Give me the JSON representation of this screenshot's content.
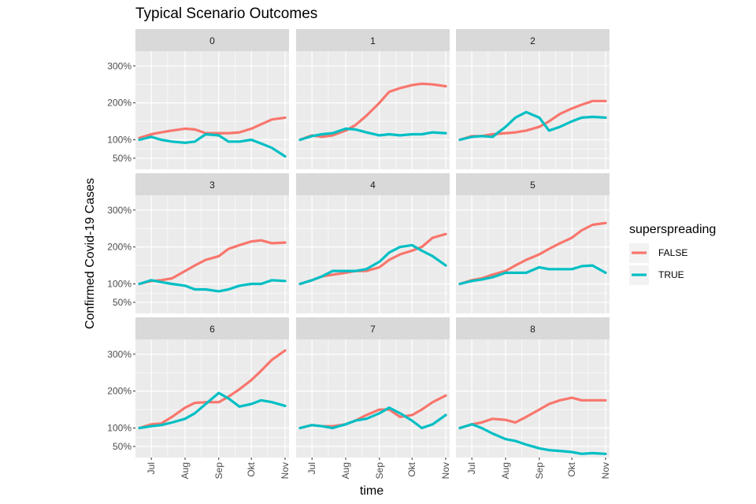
{
  "chart_data": {
    "type": "line",
    "title": "Typical Scenario Outcomes",
    "xlabel": "time",
    "ylabel": "Confirmed Covid-19 Cases",
    "x_ticks": [
      {
        "date": "2020-07-01",
        "label": "Jul"
      },
      {
        "date": "2020-08-01",
        "label": "Aug"
      },
      {
        "date": "2020-09-01",
        "label": "Sep"
      },
      {
        "date": "2020-10-01",
        "label": "Okt"
      },
      {
        "date": "2020-11-01",
        "label": "Nov"
      }
    ],
    "xlim": [
      "2020-06-20",
      "2020-11-01"
    ],
    "y_ticks": [
      {
        "value": 50,
        "label": "50%"
      },
      {
        "value": 100,
        "label": "100%"
      },
      {
        "value": 200,
        "label": "200%"
      },
      {
        "value": 300,
        "label": "300%"
      }
    ],
    "ylim": [
      20,
      340
    ],
    "grid": true,
    "legend": {
      "title": "superspreading",
      "position": "right",
      "entries": [
        {
          "label": "FALSE",
          "color": "#F8766D"
        },
        {
          "label": "TRUE",
          "color": "#00BFC4"
        }
      ]
    },
    "x_dates": [
      "2020-06-20",
      "2020-07-01",
      "2020-07-10",
      "2020-07-20",
      "2020-08-01",
      "2020-08-10",
      "2020-08-20",
      "2020-09-01",
      "2020-09-10",
      "2020-09-20",
      "2020-10-01",
      "2020-10-10",
      "2020-10-20",
      "2020-11-01"
    ],
    "panels": [
      {
        "label": "0",
        "series": [
          {
            "name": "FALSE",
            "values": [
              105,
              115,
              120,
              125,
              130,
              128,
              118,
              118,
              118,
              120,
              130,
              142,
              155,
              160
            ]
          },
          {
            "name": "TRUE",
            "values": [
              100,
              108,
              100,
              95,
              92,
              95,
              115,
              112,
              95,
              95,
              100,
              90,
              78,
              55
            ]
          }
        ]
      },
      {
        "label": "1",
        "series": [
          {
            "name": "FALSE",
            "values": [
              100,
              112,
              108,
              112,
              125,
              140,
              165,
              200,
              230,
              240,
              248,
              252,
              250,
              245
            ]
          },
          {
            "name": "TRUE",
            "values": [
              100,
              110,
              115,
              118,
              130,
              128,
              120,
              112,
              115,
              112,
              115,
              115,
              120,
              118
            ]
          }
        ]
      },
      {
        "label": "2",
        "series": [
          {
            "name": "FALSE",
            "values": [
              100,
              110,
              110,
              115,
              118,
              120,
              125,
              135,
              150,
              170,
              185,
              195,
              205,
              205
            ]
          },
          {
            "name": "TRUE",
            "values": [
              100,
              108,
              110,
              108,
              135,
              160,
              175,
              160,
              125,
              135,
              150,
              160,
              162,
              160
            ]
          }
        ]
      },
      {
        "label": "3",
        "series": [
          {
            "name": "FALSE",
            "values": [
              100,
              108,
              110,
              115,
              135,
              150,
              165,
              175,
              195,
              205,
              215,
              218,
              210,
              212
            ]
          },
          {
            "name": "TRUE",
            "values": [
              100,
              110,
              105,
              100,
              95,
              85,
              85,
              80,
              85,
              95,
              100,
              100,
              110,
              108
            ]
          }
        ]
      },
      {
        "label": "4",
        "series": [
          {
            "name": "FALSE",
            "values": [
              100,
              110,
              120,
              125,
              130,
              135,
              135,
              145,
              165,
              180,
              190,
              200,
              225,
              235
            ]
          },
          {
            "name": "TRUE",
            "values": [
              100,
              110,
              120,
              135,
              135,
              135,
              140,
              160,
              185,
              200,
              205,
              190,
              175,
              150
            ]
          }
        ]
      },
      {
        "label": "5",
        "series": [
          {
            "name": "FALSE",
            "values": [
              100,
              110,
              115,
              125,
              135,
              150,
              165,
              180,
              195,
              210,
              225,
              245,
              260,
              265
            ]
          },
          {
            "name": "TRUE",
            "values": [
              100,
              108,
              112,
              118,
              130,
              130,
              130,
              145,
              140,
              140,
              140,
              148,
              150,
              130
            ]
          }
        ]
      },
      {
        "label": "6",
        "series": [
          {
            "name": "FALSE",
            "values": [
              100,
              110,
              112,
              130,
              155,
              168,
              170,
              170,
              185,
              205,
              230,
              255,
              285,
              310
            ]
          },
          {
            "name": "TRUE",
            "values": [
              100,
              105,
              108,
              115,
              125,
              140,
              165,
              195,
              180,
              158,
              165,
              175,
              170,
              160
            ]
          }
        ]
      },
      {
        "label": "7",
        "series": [
          {
            "name": "FALSE",
            "values": [
              100,
              108,
              105,
              105,
              110,
              120,
              135,
              150,
              150,
              130,
              135,
              150,
              170,
              188
            ]
          },
          {
            "name": "TRUE",
            "values": [
              100,
              108,
              105,
              100,
              110,
              120,
              125,
              140,
              155,
              140,
              120,
              100,
              110,
              135
            ]
          }
        ]
      },
      {
        "label": "8",
        "series": [
          {
            "name": "FALSE",
            "values": [
              100,
              110,
              115,
              125,
              122,
              115,
              130,
              150,
              165,
              175,
              182,
              175,
              175,
              175
            ]
          },
          {
            "name": "TRUE",
            "values": [
              100,
              110,
              100,
              85,
              70,
              65,
              55,
              45,
              40,
              38,
              35,
              30,
              32,
              30
            ]
          }
        ]
      }
    ]
  }
}
